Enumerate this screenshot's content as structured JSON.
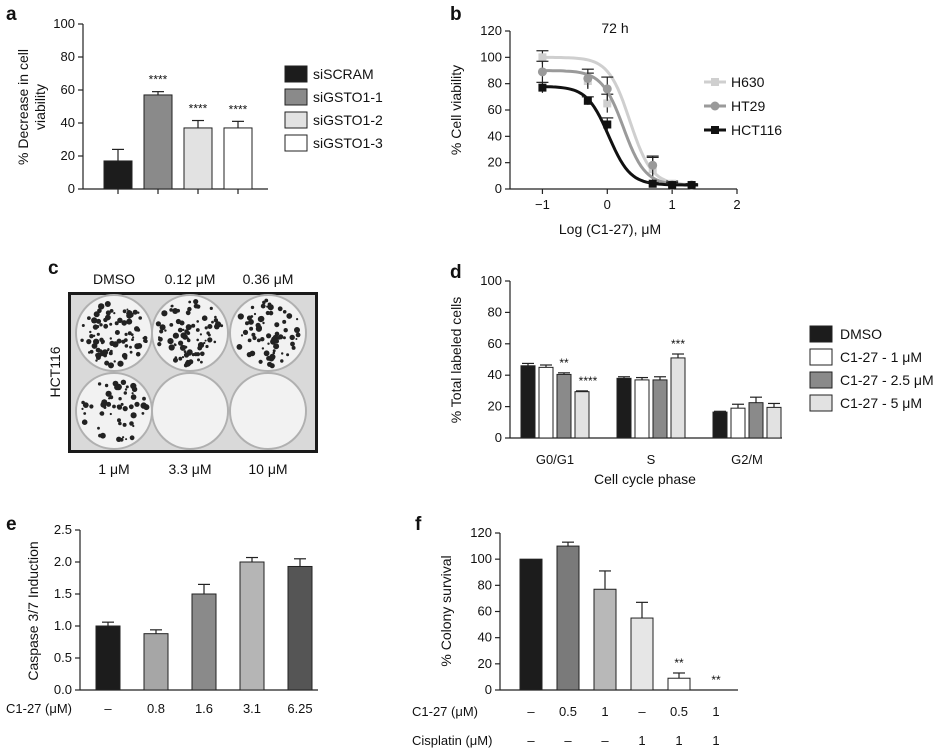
{
  "panel_labels": {
    "a": "a",
    "b": "b",
    "c": "c",
    "d": "d",
    "e": "e",
    "f": "f"
  },
  "chart_data": [
    {
      "panel": "a",
      "type": "bar",
      "ylabel": "% Decrease in cell viability",
      "ylabel_lines": [
        "% Decrease in cell",
        "viability"
      ],
      "ylim": [
        0,
        100
      ],
      "yticks": [
        0,
        20,
        40,
        60,
        80,
        100
      ],
      "categories": [
        "siSCRAM",
        "siGSTO1-1",
        "siGSTO1-2",
        "siGSTO1-3"
      ],
      "values": [
        17,
        57,
        37,
        37
      ],
      "errors": [
        7,
        2,
        4.5,
        4
      ],
      "significance": [
        "",
        "****",
        "****",
        "****"
      ],
      "colors": [
        "#1c1c1c",
        "#8a8a8a",
        "#e2e2e2",
        "#ffffff"
      ],
      "legend": [
        "siSCRAM",
        "siGSTO1-1",
        "siGSTO1-2",
        "siGSTO1-3"
      ]
    },
    {
      "panel": "b",
      "type": "line",
      "title": "72 h",
      "xlabel": "Log (C1-27), μM",
      "ylabel": "% Cell viability",
      "xlim": [
        -1.5,
        2
      ],
      "ylim": [
        0,
        120
      ],
      "xticks": [
        -1,
        0,
        1,
        2
      ],
      "xtick_labels": [
        "−1",
        "0",
        "1",
        "2"
      ],
      "yticks": [
        0,
        20,
        40,
        60,
        80,
        100,
        120
      ],
      "series": [
        {
          "name": "H630",
          "color": "#cfcfcf",
          "marker": "square",
          "ic50_log": 0.35,
          "top": 100,
          "x": [
            -1,
            -0.3,
            0,
            0.7,
            1,
            1.3
          ],
          "y": [
            100,
            82,
            65,
            15,
            4,
            3
          ],
          "err": [
            5,
            6,
            7,
            9,
            2,
            1
          ]
        },
        {
          "name": "HT29",
          "color": "#9a9a9a",
          "marker": "circle",
          "ic50_log": 0.25,
          "top": 90,
          "x": [
            -1,
            -0.3,
            0,
            0.7,
            1,
            1.3
          ],
          "y": [
            89,
            84,
            76,
            18,
            3,
            3
          ],
          "err": [
            8,
            7,
            9,
            7,
            2,
            1
          ]
        },
        {
          "name": "HCT116",
          "color": "#111111",
          "marker": "square",
          "ic50_log": 0.02,
          "top": 78,
          "x": [
            -1,
            -0.3,
            0,
            0.7,
            1,
            1.3
          ],
          "y": [
            77,
            67,
            49,
            4,
            3,
            3
          ],
          "err": [
            4,
            3,
            5,
            1,
            1,
            1
          ]
        }
      ],
      "legend": [
        "H630",
        "HT29",
        "HCT116"
      ]
    },
    {
      "panel": "d",
      "type": "bar",
      "xlabel": "Cell cycle phase",
      "ylabel": "% Total labeled cells",
      "ylim": [
        0,
        100
      ],
      "yticks": [
        0,
        20,
        40,
        60,
        80,
        100
      ],
      "categories": [
        "G0/G1",
        "S",
        "G2/M"
      ],
      "series": [
        {
          "name": "DMSO",
          "color": "#1c1c1c",
          "values": [
            46,
            38,
            16.5
          ],
          "errors": [
            1.5,
            1,
            0.5
          ],
          "significance": [
            "",
            "",
            ""
          ]
        },
        {
          "name": "C1-27 - 1 μM",
          "color": "#ffffff",
          "values": [
            45,
            37,
            19
          ],
          "errors": [
            1.5,
            1.5,
            2.5
          ],
          "significance": [
            "",
            "",
            ""
          ]
        },
        {
          "name": "C1-27 - 2.5 μM",
          "color": "#8a8a8a",
          "values": [
            40.5,
            37,
            22.5
          ],
          "errors": [
            1,
            2,
            3.5
          ],
          "significance": [
            "**",
            "",
            ""
          ]
        },
        {
          "name": "C1-27 - 5 μM",
          "color": "#e2e2e2",
          "values": [
            29.5,
            51,
            19.5
          ],
          "errors": [
            0.5,
            2.5,
            2.5
          ],
          "significance": [
            "****",
            "***",
            ""
          ]
        }
      ],
      "legend": [
        "DMSO",
        "C1-27 - 1 μM",
        "C1-27 - 2.5 μM",
        "C1-27 - 5 μM"
      ]
    },
    {
      "panel": "e",
      "type": "bar",
      "ylabel": "Caspase 3/7 Induction",
      "ylim": [
        0,
        2.5
      ],
      "yticks": [
        0.0,
        0.5,
        1.0,
        1.5,
        2.0,
        2.5
      ],
      "ytick_labels": [
        "0.0",
        "0.5",
        "1.0",
        "1.5",
        "2.0",
        "2.5"
      ],
      "row_label": "C1-27 (μM)",
      "categories": [
        "–",
        "0.8",
        "1.6",
        "3.1",
        "6.25"
      ],
      "values": [
        1.0,
        0.88,
        1.5,
        2.0,
        1.93
      ],
      "errors": [
        0.06,
        0.06,
        0.15,
        0.07,
        0.12
      ],
      "colors": [
        "#1c1c1c",
        "#a6a6a6",
        "#8a8a8a",
        "#b5b5b5",
        "#555555"
      ]
    },
    {
      "panel": "f",
      "type": "bar",
      "ylabel": "% Colony survival",
      "ylim": [
        0,
        120
      ],
      "yticks": [
        0,
        20,
        40,
        60,
        80,
        100,
        120
      ],
      "row_labels": [
        "C1-27 (μM)",
        "Cisplatin (μM)"
      ],
      "categories_row1": [
        "–",
        "0.5",
        "1",
        "–",
        "0.5",
        "1"
      ],
      "categories_row2": [
        "–",
        "–",
        "–",
        "1",
        "1",
        "1"
      ],
      "values": [
        100,
        110,
        77,
        55,
        9,
        0
      ],
      "errors": [
        0,
        3,
        14,
        12,
        4,
        0
      ],
      "significance": [
        "",
        "",
        "",
        "",
        "**",
        "**"
      ],
      "colors": [
        "#1c1c1c",
        "#7a7a7a",
        "#b8b8b8",
        "#e6e6e6",
        "#ffffff",
        "#ffffff"
      ]
    }
  ],
  "panel_c": {
    "top_labels": [
      "DMSO",
      "0.12 μM",
      "0.36 μM"
    ],
    "bottom_labels": [
      "1 μM",
      "3.3 μM",
      "10 μM"
    ],
    "side_label": "HCT116",
    "colony_density": [
      90,
      85,
      70,
      55,
      0,
      0
    ]
  }
}
